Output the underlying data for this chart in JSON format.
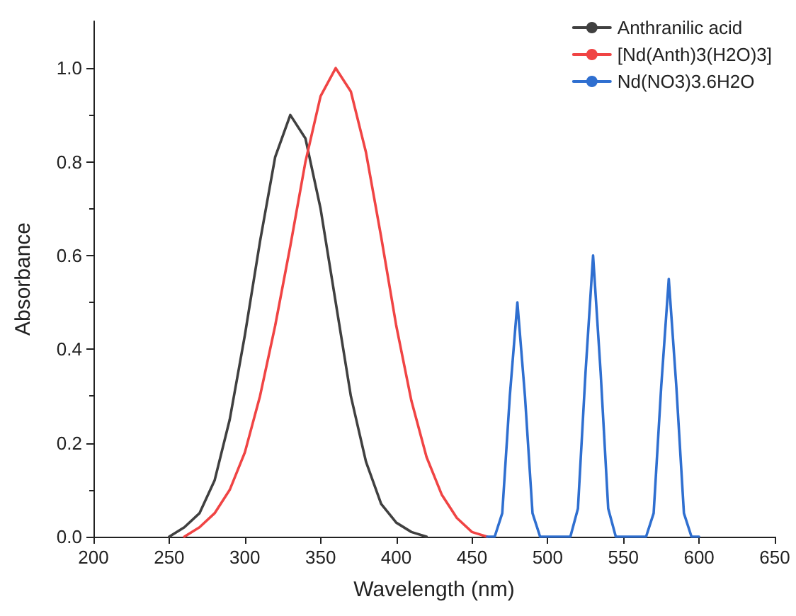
{
  "chart_data": {
    "type": "line",
    "xlabel": "Wavelength (nm)",
    "ylabel": "Absorbance",
    "xlim": [
      200,
      650
    ],
    "xticks": [
      200,
      250,
      300,
      350,
      400,
      450,
      500,
      550,
      600,
      650
    ],
    "ylim": [
      0,
      1.1
    ],
    "yticks": [
      {
        "value": 0,
        "label": "0.0"
      },
      {
        "value": 0.2,
        "label": "0.2"
      },
      {
        "value": 0.4,
        "label": "0.4"
      },
      {
        "value": 0.6,
        "label": "0.6"
      },
      {
        "value": 0.8,
        "label": "0.8"
      },
      {
        "value": 1,
        "label": "1.0"
      }
    ],
    "grid": false,
    "legend": "top right",
    "marker": "none",
    "line_style": "solid",
    "series": [
      {
        "name": "Anthranilic acid",
        "color": "#404040",
        "x": [
          250,
          260,
          270,
          280,
          290,
          300,
          310,
          320,
          330,
          340,
          350,
          360,
          370,
          380,
          390,
          400,
          410,
          420
        ],
        "values": [
          0,
          0.02,
          0.05,
          0.12,
          0.25,
          0.43,
          0.63,
          0.81,
          0.9,
          0.85,
          0.7,
          0.5,
          0.3,
          0.16,
          0.07,
          0.03,
          0.01,
          0
        ]
      },
      {
        "name": "[Nd(Anth)3(H2O)3]",
        "color": "#f04444",
        "x": [
          260,
          270,
          280,
          290,
          300,
          310,
          320,
          330,
          340,
          350,
          360,
          370,
          380,
          390,
          400,
          410,
          420,
          430,
          440,
          450,
          460
        ],
        "values": [
          0,
          0.02,
          0.05,
          0.1,
          0.18,
          0.3,
          0.45,
          0.62,
          0.8,
          0.94,
          1,
          0.95,
          0.82,
          0.64,
          0.45,
          0.29,
          0.17,
          0.09,
          0.04,
          0.01,
          0
        ]
      },
      {
        "name": "Nd(NO3)3.6H2O",
        "color": "#2f6fd0",
        "x": [
          460,
          465,
          470,
          475,
          480,
          485,
          490,
          495,
          515,
          520,
          525,
          530,
          535,
          540,
          545,
          565,
          570,
          575,
          580,
          585,
          590,
          595,
          600
        ],
        "values": [
          0,
          0,
          0.05,
          0.3,
          0.5,
          0.3,
          0.05,
          0,
          0,
          0.06,
          0.35,
          0.6,
          0.35,
          0.06,
          0,
          0,
          0.05,
          0.32,
          0.55,
          0.32,
          0.05,
          0,
          0
        ]
      }
    ]
  }
}
